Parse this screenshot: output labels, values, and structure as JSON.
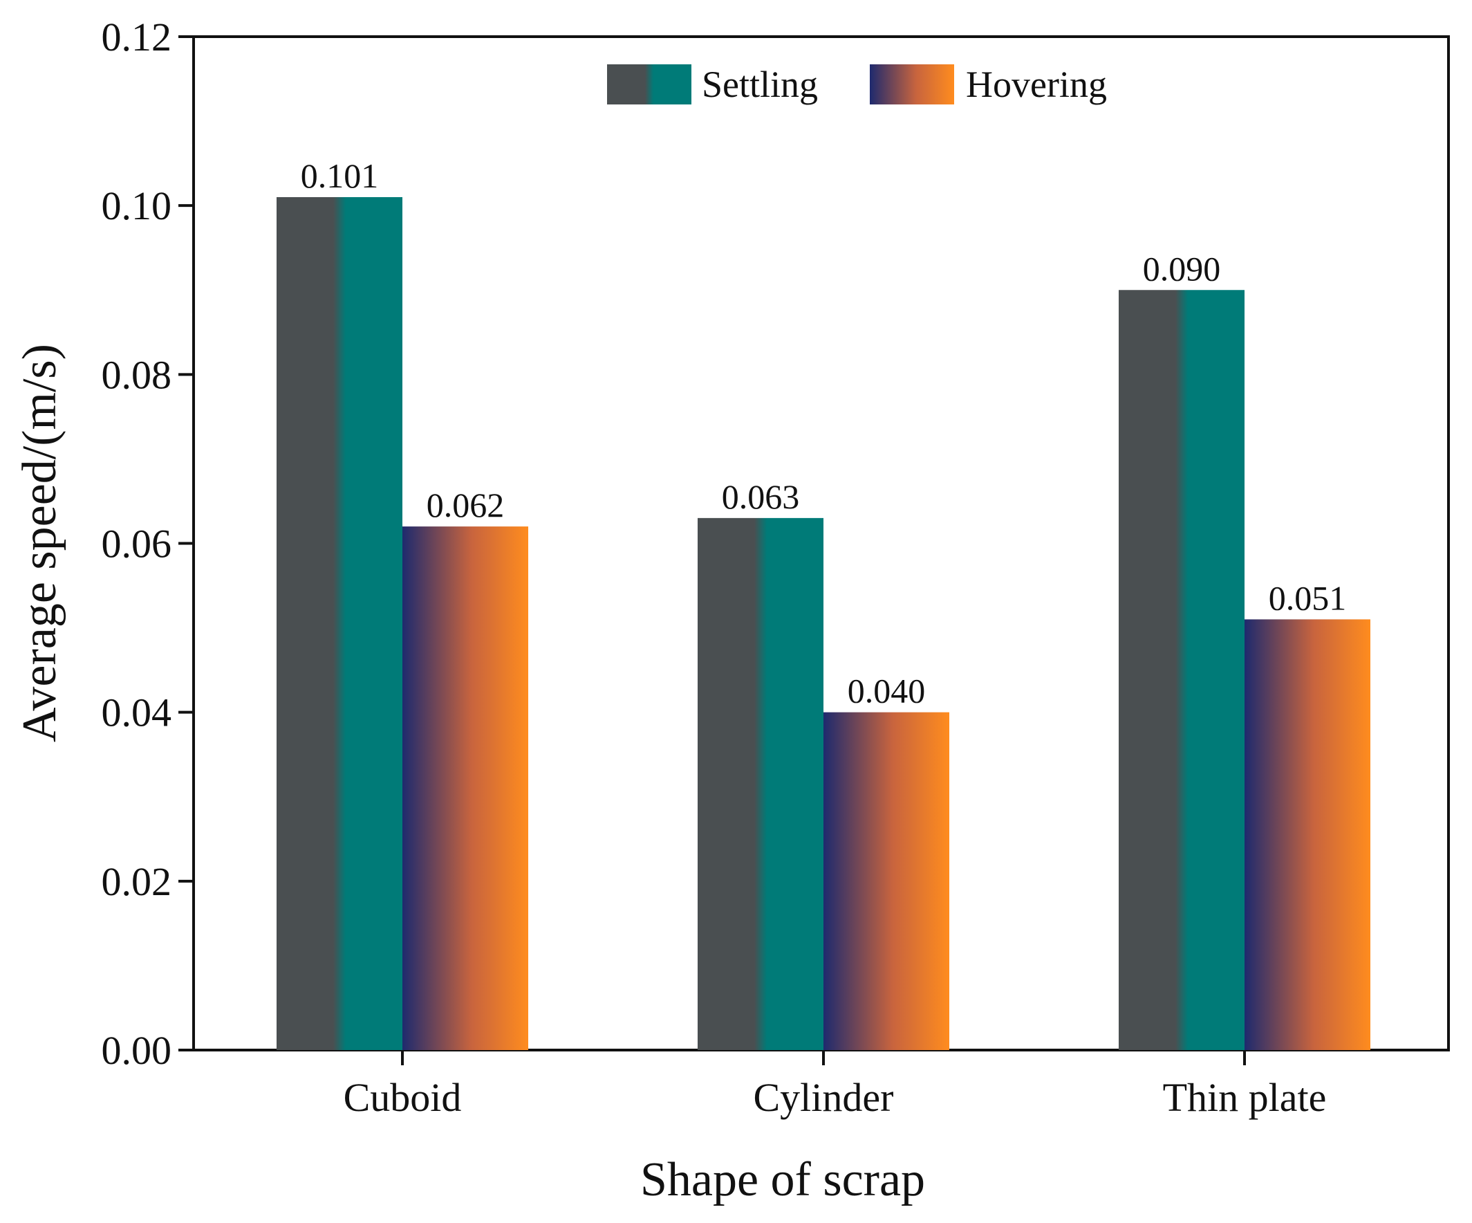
{
  "chart_data": {
    "type": "bar",
    "title": "",
    "xlabel": "Shape of scrap",
    "ylabel": "Average speed/(m/s)",
    "categories": [
      "Cuboid",
      "Cylinder",
      "Thin plate"
    ],
    "series": [
      {
        "name": "Settling",
        "values": [
          0.101,
          0.063,
          0.09
        ],
        "labels": [
          "0.101",
          "0.063",
          "0.090"
        ],
        "gradient": [
          "#4a4f51",
          "#007b78"
        ]
      },
      {
        "name": "Hovering",
        "values": [
          0.062,
          0.04,
          0.051
        ],
        "labels": [
          "0.062",
          "0.040",
          "0.051"
        ],
        "gradient": [
          "#1e2a6e",
          "#ff8c1e"
        ]
      }
    ],
    "ylim": [
      0,
      0.12
    ],
    "yticks": [
      0.0,
      0.02,
      0.04,
      0.06,
      0.08,
      0.1,
      0.12
    ],
    "ytick_labels": [
      "0.00",
      "0.02",
      "0.04",
      "0.06",
      "0.08",
      "0.10",
      "0.12"
    ],
    "legend_position": "top-center",
    "grid": false
  }
}
